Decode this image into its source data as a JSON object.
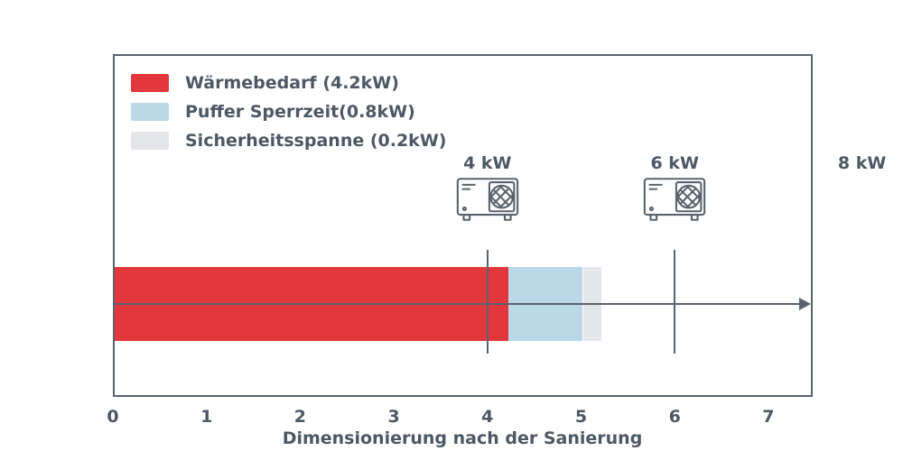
{
  "chart_data": {
    "type": "bar",
    "orientation": "horizontal-stacked",
    "xlabel": "Dimensionierung nach der Sanierung",
    "xlim": [
      0,
      7.5
    ],
    "x_ticks": [
      "0",
      "1",
      "2",
      "3",
      "4",
      "5",
      "6",
      "7"
    ],
    "series": [
      {
        "name": "Wärmebedarf (4.2kW)",
        "value": 4.2,
        "color": "#e2383b"
      },
      {
        "name": "Puffer Sperrzeit(0.8kW)",
        "value": 0.8,
        "color": "#bad8e8"
      },
      {
        "name": "Sicherheitsspanne (0.2kW)",
        "value": 0.2,
        "color": "#e4e6ea"
      }
    ],
    "total_kw": 5.2,
    "markers": [
      {
        "label": "4 kW",
        "value": 4,
        "icon": "heat-pump-icon"
      },
      {
        "label": "6 kW",
        "value": 6,
        "icon": "heat-pump-icon"
      }
    ],
    "outside_marker": {
      "label": "8 kW",
      "value": 8
    },
    "legend_position": "upper-left-inside",
    "grid": false
  },
  "colors": {
    "axis": "#5a636d",
    "text": "#4d5864",
    "background": "#ffffff"
  }
}
